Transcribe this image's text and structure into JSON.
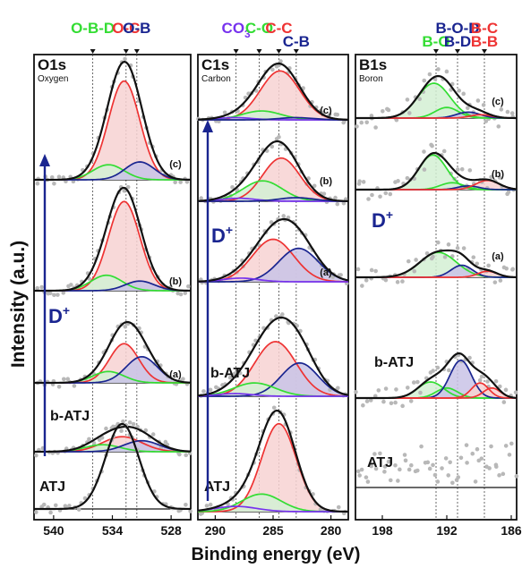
{
  "chart_data": {
    "type": "line",
    "ylabel": "Intensity (a.u.)",
    "xlabel": "Binding energy (eV)",
    "colors": {
      "envelope": "#111111",
      "green": "#33dd33",
      "red": "#ee3333",
      "navy": "#1a2590",
      "purple": "#7733ee",
      "data_points": "#b8b8b8",
      "red_fill": "#f7d2d2",
      "navy_fill": "#c9c3e6",
      "green_fill": "#d4f0d4"
    },
    "panels": [
      {
        "key": "O",
        "name": "O1s",
        "subtitle": "Oxygen",
        "xlim": [
          542,
          526
        ],
        "ticks": [
          540,
          534,
          528
        ],
        "tick_labels": [
          "540",
          "534",
          "528"
        ],
        "dashed": [
          536.0,
          532.6,
          531.5
        ],
        "header_labels": [
          {
            "text": "O-B-D",
            "color": "green",
            "line": 0,
            "anchor": 536.0
          },
          {
            "text": "O-C",
            "color": "red",
            "line": 0,
            "anchor": 532.6
          },
          {
            "text": "O-B",
            "color": "navy",
            "line": 0,
            "anchor": 531.5
          }
        ],
        "arrow_label": "D",
        "arrow_sup": "+",
        "spectra": [
          {
            "label": "(c)",
            "baseline": 0.0,
            "envelope": 2.5,
            "components": [
              {
                "c": 532.8,
                "w": 1.6,
                "a": 2.1,
                "color": "red"
              },
              {
                "c": 534.4,
                "w": 1.6,
                "a": 0.32,
                "color": "green"
              },
              {
                "c": 531.2,
                "w": 1.5,
                "a": 0.38,
                "color": "navy"
              }
            ]
          },
          {
            "label": "(b)",
            "baseline": 0.0,
            "envelope": 2.2,
            "components": [
              {
                "c": 532.8,
                "w": 1.6,
                "a": 1.85,
                "color": "red"
              },
              {
                "c": 534.6,
                "w": 1.6,
                "a": 0.32,
                "color": "green"
              },
              {
                "c": 531.2,
                "w": 1.5,
                "a": 0.2,
                "color": "navy"
              }
            ]
          },
          {
            "label": "(a)",
            "baseline": 0.0,
            "envelope": 1.4,
            "components": [
              {
                "c": 532.8,
                "w": 1.5,
                "a": 0.9,
                "color": "red"
              },
              {
                "c": 534.4,
                "w": 1.6,
                "a": 0.26,
                "color": "green"
              },
              {
                "c": 531.0,
                "w": 1.6,
                "a": 0.6,
                "color": "navy"
              }
            ]
          },
          {
            "label": "b-ATJ",
            "baseline": 0.0,
            "envelope": 0.52,
            "components": [
              {
                "c": 533.0,
                "w": 2.0,
                "a": 0.3,
                "color": "red"
              },
              {
                "c": 535.0,
                "w": 1.8,
                "a": 0.14,
                "color": "green"
              },
              {
                "c": 531.0,
                "w": 1.8,
                "a": 0.22,
                "color": "navy"
              }
            ]
          },
          {
            "label": "ATJ",
            "baseline": 0.0,
            "envelope": 1.25,
            "components": []
          }
        ]
      },
      {
        "key": "C",
        "name": "C1s",
        "subtitle": "Carbon",
        "xlim": [
          291.5,
          278.5
        ],
        "ticks": [
          290,
          285,
          280
        ],
        "tick_labels": [
          "290",
          "285",
          "280"
        ],
        "dashed": [
          288.2,
          286.2,
          284.5,
          283.0
        ],
        "header_labels": [
          {
            "text": "CO3",
            "color": "purple",
            "line": 0,
            "anchor": 288.2
          },
          {
            "text": "C-O",
            "color": "green",
            "line": 0,
            "anchor": 286.2
          },
          {
            "text": "C-C",
            "color": "red",
            "line": 0,
            "anchor": 284.5
          },
          {
            "text": "C-B",
            "color": "navy",
            "line": 1,
            "anchor": 283.0
          }
        ],
        "arrow_label": "D",
        "arrow_sup": "+",
        "spectra": [
          {
            "label": "(c)",
            "baseline": 0.0,
            "envelope": 1.0,
            "components": [
              {
                "c": 284.4,
                "w": 1.7,
                "a": 0.88,
                "color": "red"
              },
              {
                "c": 286.0,
                "w": 1.7,
                "a": 0.16,
                "color": "green"
              },
              {
                "c": 288.3,
                "w": 1.5,
                "a": 0.04,
                "color": "purple"
              },
              {
                "c": 283.0,
                "w": 1.5,
                "a": 0.04,
                "color": "navy"
              }
            ]
          },
          {
            "label": "(b)",
            "baseline": 0.0,
            "envelope": 1.0,
            "components": [
              {
                "c": 284.3,
                "w": 1.6,
                "a": 0.72,
                "color": "red"
              },
              {
                "c": 285.9,
                "w": 1.7,
                "a": 0.34,
                "color": "green"
              },
              {
                "c": 288.0,
                "w": 1.5,
                "a": 0.05,
                "color": "purple"
              },
              {
                "c": 283.0,
                "w": 1.5,
                "a": 0.06,
                "color": "navy"
              }
            ]
          },
          {
            "label": "(a)",
            "baseline": 0.0,
            "envelope": 1.0,
            "components": [
              {
                "c": 285.0,
                "w": 1.8,
                "a": 0.7,
                "color": "red"
              },
              {
                "c": 282.8,
                "w": 1.7,
                "a": 0.55,
                "color": "navy"
              },
              {
                "c": 287.8,
                "w": 1.5,
                "a": 0.06,
                "color": "purple"
              }
            ]
          },
          {
            "label": "b-ATJ",
            "baseline": 0.0,
            "envelope": 1.0,
            "components": [
              {
                "c": 284.8,
                "w": 1.8,
                "a": 0.82,
                "color": "red"
              },
              {
                "c": 282.7,
                "w": 1.6,
                "a": 0.5,
                "color": "navy"
              },
              {
                "c": 286.6,
                "w": 1.8,
                "a": 0.2,
                "color": "green"
              },
              {
                "c": 288.3,
                "w": 1.5,
                "a": 0.04,
                "color": "purple"
              }
            ]
          },
          {
            "label": "ATJ",
            "baseline": 0.0,
            "envelope": 1.0,
            "components": [
              {
                "c": 284.5,
                "w": 1.5,
                "a": 1.0,
                "color": "red"
              },
              {
                "c": 286.0,
                "w": 1.7,
                "a": 0.2,
                "color": "green"
              },
              {
                "c": 288.2,
                "w": 1.8,
                "a": 0.06,
                "color": "purple"
              }
            ]
          }
        ]
      },
      {
        "key": "B",
        "name": "B1s",
        "subtitle": "Boron",
        "xlim": [
          200.5,
          185.5
        ],
        "ticks": [
          198,
          192,
          186
        ],
        "tick_labels": [
          "198",
          "192",
          "186"
        ],
        "dashed": [
          193.0,
          191.0,
          188.5
        ],
        "header_labels": [
          {
            "text": "B-O",
            "color": "green",
            "line": 1,
            "anchor": 193.0
          },
          {
            "text": "B-O-D",
            "color": "navy",
            "line": 0,
            "anchor": 191.0
          },
          {
            "text": "B-D",
            "color": "navy",
            "line": 1,
            "anchor": 191.0
          },
          {
            "text": "B-C",
            "color": "red",
            "line": 0,
            "anchor": 188.5
          },
          {
            "text": "B-B",
            "color": "red",
            "line": 1,
            "anchor": 188.5
          }
        ],
        "arrow_label": "D",
        "arrow_sup": "+",
        "spectra": [
          {
            "label": "(c)",
            "baseline": 0.0,
            "envelope": 1.0,
            "components": [
              {
                "c": 193.2,
                "w": 1.5,
                "a": 0.82,
                "color": "green"
              },
              {
                "c": 192.0,
                "w": 1.1,
                "a": 0.25,
                "color": "green"
              },
              {
                "c": 190.0,
                "w": 1.1,
                "a": 0.14,
                "color": "navy"
              },
              {
                "c": 188.8,
                "w": 1.0,
                "a": 0.08,
                "color": "red"
              }
            ]
          },
          {
            "label": "(b)",
            "baseline": 0.0,
            "envelope": 1.0,
            "components": [
              {
                "c": 193.3,
                "w": 1.3,
                "a": 0.75,
                "color": "green"
              },
              {
                "c": 191.5,
                "w": 1.1,
                "a": 0.15,
                "color": "green"
              },
              {
                "c": 190.0,
                "w": 1.0,
                "a": 0.08,
                "color": "navy"
              },
              {
                "c": 188.2,
                "w": 1.1,
                "a": 0.2,
                "color": "red"
              }
            ]
          },
          {
            "label": "(a)",
            "baseline": 0.0,
            "envelope": 1.0,
            "components": [
              {
                "c": 192.8,
                "w": 1.7,
                "a": 0.62,
                "color": "green"
              },
              {
                "c": 190.6,
                "w": 1.0,
                "a": 0.3,
                "color": "navy"
              },
              {
                "c": 188.2,
                "w": 0.9,
                "a": 0.15,
                "color": "red"
              }
            ]
          },
          {
            "label": "b-ATJ",
            "baseline": 0.0,
            "envelope": 1.0,
            "components": [
              {
                "c": 193.5,
                "w": 1.2,
                "a": 0.32,
                "color": "green"
              },
              {
                "c": 192.0,
                "w": 1.0,
                "a": 0.2,
                "color": "green"
              },
              {
                "c": 190.7,
                "w": 1.0,
                "a": 0.75,
                "color": "navy"
              },
              {
                "c": 188.9,
                "w": 0.8,
                "a": 0.3,
                "color": "red"
              },
              {
                "c": 187.8,
                "w": 0.8,
                "a": 0.2,
                "color": "red"
              }
            ]
          },
          {
            "label": "ATJ",
            "baseline": 0.0,
            "envelope": 1.0,
            "components": []
          }
        ]
      }
    ]
  }
}
